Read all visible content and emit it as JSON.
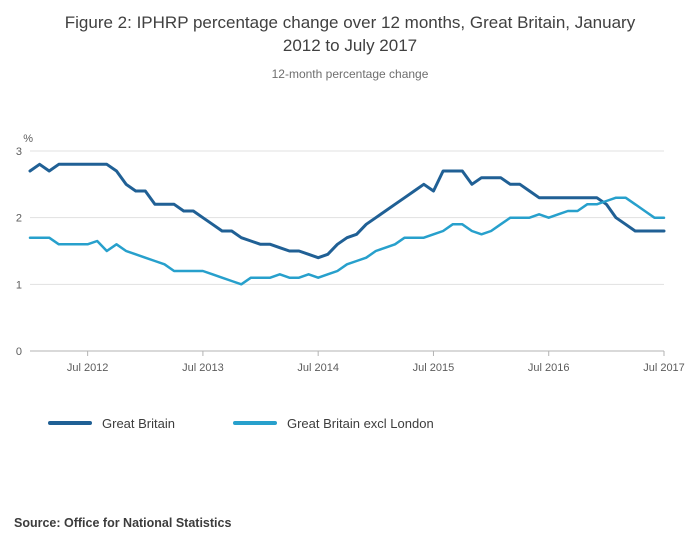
{
  "chart": {
    "title": "Figure 2: IPHRP percentage change over 12 months, Great Britain, January 2012 to July 2017",
    "subtitle": "12-month percentage change",
    "source": "Source: Office for National Statistics"
  },
  "chart_data": {
    "type": "line",
    "title": "Figure 2: IPHRP percentage change over 12 months, Great Britain, January 2012 to July 2017",
    "subtitle": "12-month percentage change",
    "ylabel": "%",
    "xlabel": "",
    "ylim": [
      0,
      3
    ],
    "y_ticks": [
      0,
      1,
      2,
      3
    ],
    "grid": "horizontal",
    "legend_position": "bottom",
    "x_ticks": [
      {
        "index": 6,
        "label": "Jul 2012"
      },
      {
        "index": 18,
        "label": "Jul 2013"
      },
      {
        "index": 30,
        "label": "Jul 2014"
      },
      {
        "index": 42,
        "label": "Jul 2015"
      },
      {
        "index": 54,
        "label": "Jul 2016"
      },
      {
        "index": 66,
        "label": "Jul 2017"
      }
    ],
    "categories": [
      "Jan 2012",
      "Feb 2012",
      "Mar 2012",
      "Apr 2012",
      "May 2012",
      "Jun 2012",
      "Jul 2012",
      "Aug 2012",
      "Sep 2012",
      "Oct 2012",
      "Nov 2012",
      "Dec 2012",
      "Jan 2013",
      "Feb 2013",
      "Mar 2013",
      "Apr 2013",
      "May 2013",
      "Jun 2013",
      "Jul 2013",
      "Aug 2013",
      "Sep 2013",
      "Oct 2013",
      "Nov 2013",
      "Dec 2013",
      "Jan 2014",
      "Feb 2014",
      "Mar 2014",
      "Apr 2014",
      "May 2014",
      "Jun 2014",
      "Jul 2014",
      "Aug 2014",
      "Sep 2014",
      "Oct 2014",
      "Nov 2014",
      "Dec 2014",
      "Jan 2015",
      "Feb 2015",
      "Mar 2015",
      "Apr 2015",
      "May 2015",
      "Jun 2015",
      "Jul 2015",
      "Aug 2015",
      "Sep 2015",
      "Oct 2015",
      "Nov 2015",
      "Dec 2015",
      "Jan 2016",
      "Feb 2016",
      "Mar 2016",
      "Apr 2016",
      "May 2016",
      "Jun 2016",
      "Jul 2016",
      "Aug 2016",
      "Sep 2016",
      "Oct 2016",
      "Nov 2016",
      "Dec 2016",
      "Jan 2017",
      "Feb 2017",
      "Mar 2017",
      "Apr 2017",
      "May 2017",
      "Jun 2017",
      "Jul 2017"
    ],
    "series": [
      {
        "name": "Great Britain",
        "color": "#206095",
        "values": [
          2.7,
          2.8,
          2.7,
          2.8,
          2.8,
          2.8,
          2.8,
          2.8,
          2.8,
          2.7,
          2.5,
          2.4,
          2.4,
          2.2,
          2.2,
          2.2,
          2.1,
          2.1,
          2.0,
          1.9,
          1.8,
          1.8,
          1.7,
          1.65,
          1.6,
          1.6,
          1.55,
          1.5,
          1.5,
          1.45,
          1.4,
          1.45,
          1.6,
          1.7,
          1.75,
          1.9,
          2.0,
          2.1,
          2.2,
          2.3,
          2.4,
          2.5,
          2.4,
          2.7,
          2.7,
          2.7,
          2.5,
          2.6,
          2.6,
          2.6,
          2.5,
          2.5,
          2.4,
          2.3,
          2.3,
          2.3,
          2.3,
          2.3,
          2.3,
          2.3,
          2.2,
          2.0,
          1.9,
          1.8,
          1.8,
          1.8,
          1.8
        ]
      },
      {
        "name": "Great Britain excl London",
        "color": "#27A0CC",
        "values": [
          1.7,
          1.7,
          1.7,
          1.6,
          1.6,
          1.6,
          1.6,
          1.65,
          1.5,
          1.6,
          1.5,
          1.45,
          1.4,
          1.35,
          1.3,
          1.2,
          1.2,
          1.2,
          1.2,
          1.15,
          1.1,
          1.05,
          1.0,
          1.1,
          1.1,
          1.1,
          1.15,
          1.1,
          1.1,
          1.15,
          1.1,
          1.15,
          1.2,
          1.3,
          1.35,
          1.4,
          1.5,
          1.55,
          1.6,
          1.7,
          1.7,
          1.7,
          1.75,
          1.8,
          1.9,
          1.9,
          1.8,
          1.75,
          1.8,
          1.9,
          2.0,
          2.0,
          2.0,
          2.05,
          2.0,
          2.05,
          2.1,
          2.1,
          2.2,
          2.2,
          2.25,
          2.3,
          2.3,
          2.2,
          2.1,
          2.0,
          2.0
        ]
      }
    ]
  }
}
